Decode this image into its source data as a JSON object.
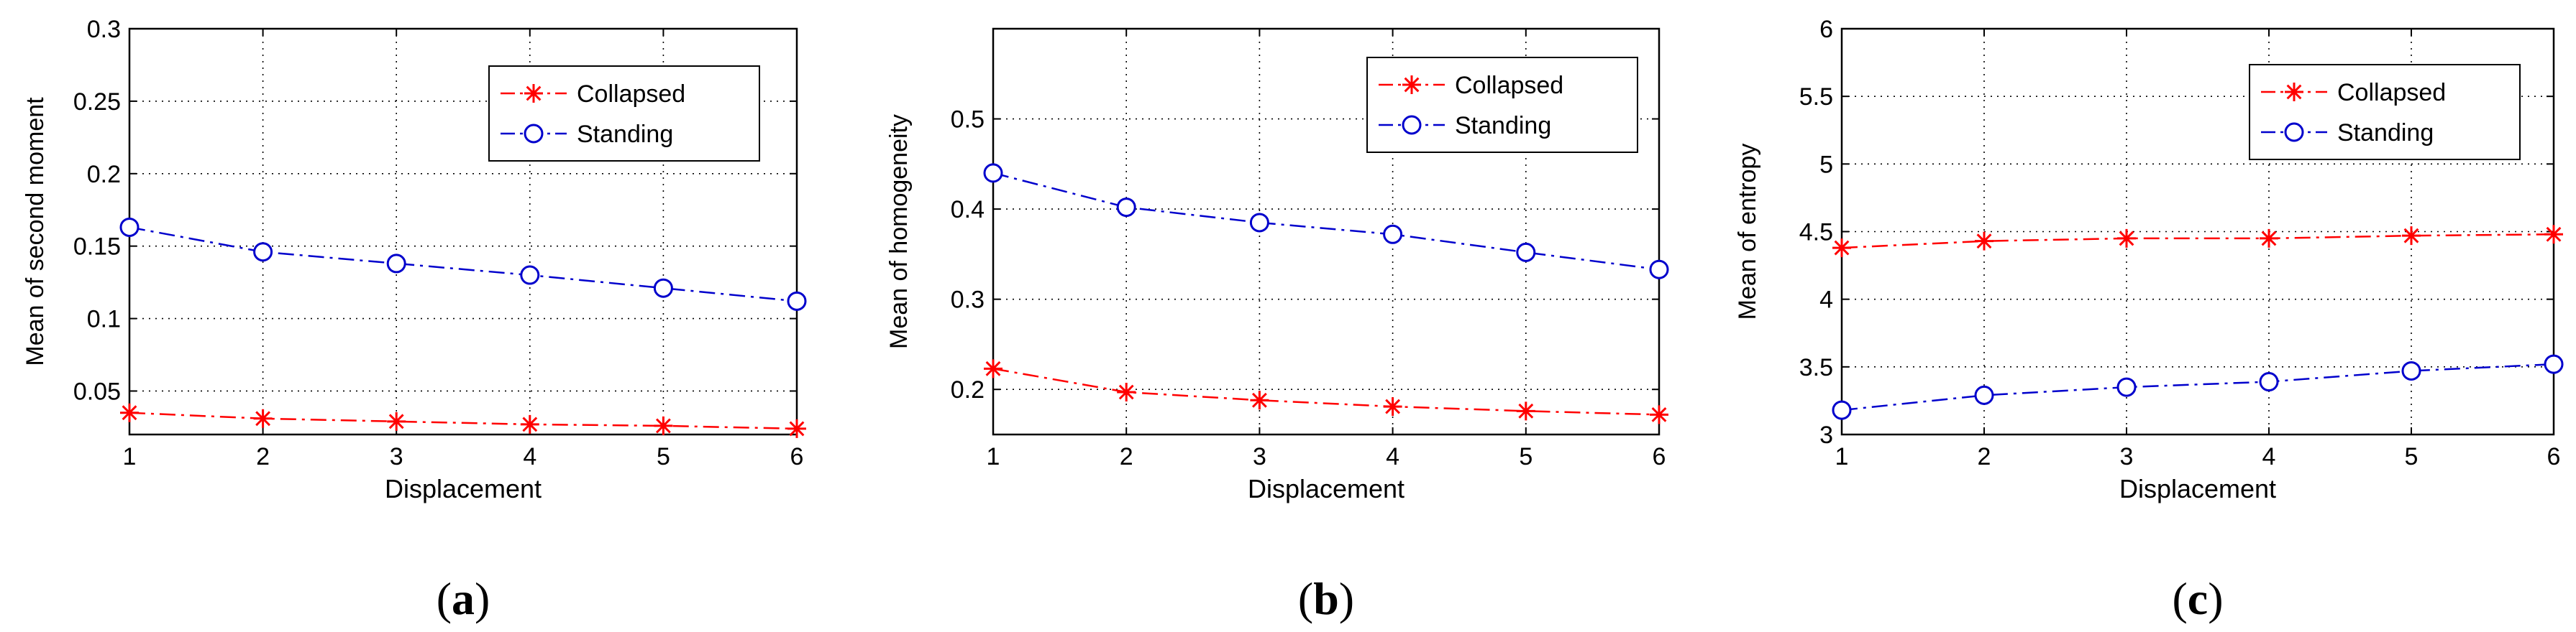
{
  "chart_data": [
    {
      "type": "line",
      "caption_letter": "a",
      "x": [
        1,
        2,
        3,
        4,
        5,
        6
      ],
      "xlim": [
        1,
        6
      ],
      "ylim": [
        0.02,
        0.3
      ],
      "xticks": [
        "1",
        "2",
        "3",
        "4",
        "5",
        "6"
      ],
      "yticks": [
        "0.05",
        "0.1",
        "0.15",
        "0.2",
        "0.25",
        "0.3"
      ],
      "ytick_values": [
        0.05,
        0.1,
        0.15,
        0.2,
        0.25,
        0.3
      ],
      "xlabel": "Displacement",
      "ylabel": "Mean of second moment",
      "grid": true,
      "legend_position": "top-right",
      "series": [
        {
          "name": "Collapsed",
          "marker": "star",
          "color": "#ff0000",
          "values": [
            0.035,
            0.031,
            0.029,
            0.027,
            0.026,
            0.024
          ]
        },
        {
          "name": "Standing",
          "marker": "circle",
          "color": "#0000cc",
          "values": [
            0.163,
            0.146,
            0.138,
            0.13,
            0.121,
            0.112
          ]
        }
      ]
    },
    {
      "type": "line",
      "caption_letter": "b",
      "x": [
        1,
        2,
        3,
        4,
        5,
        6
      ],
      "xlim": [
        1,
        6
      ],
      "ylim": [
        0.15,
        0.6
      ],
      "xticks": [
        "1",
        "2",
        "3",
        "4",
        "5",
        "6"
      ],
      "yticks": [
        "0.2",
        "0.3",
        "0.4",
        "0.5"
      ],
      "ytick_values": [
        0.2,
        0.3,
        0.4,
        0.5
      ],
      "xlabel": "Displacement",
      "ylabel": "Mean of homogeneity",
      "grid": true,
      "legend_position": "top-right",
      "series": [
        {
          "name": "Collapsed",
          "marker": "star",
          "color": "#ff0000",
          "values": [
            0.223,
            0.197,
            0.188,
            0.181,
            0.176,
            0.172
          ]
        },
        {
          "name": "Standing",
          "marker": "circle",
          "color": "#0000cc",
          "values": [
            0.44,
            0.402,
            0.385,
            0.372,
            0.352,
            0.333
          ]
        }
      ]
    },
    {
      "type": "line",
      "caption_letter": "c",
      "x": [
        1,
        2,
        3,
        4,
        5,
        6
      ],
      "xlim": [
        1,
        6
      ],
      "ylim": [
        3,
        6
      ],
      "xticks": [
        "1",
        "2",
        "3",
        "4",
        "5",
        "6"
      ],
      "yticks": [
        "3",
        "3.5",
        "4",
        "4.5",
        "5",
        "5.5",
        "6"
      ],
      "ytick_values": [
        3,
        3.5,
        4,
        4.5,
        5,
        5.5,
        6
      ],
      "xlabel": "Displacement",
      "ylabel": "Mean of entropy",
      "grid": true,
      "legend_position": "top-right",
      "series": [
        {
          "name": "Collapsed",
          "marker": "star",
          "color": "#ff0000",
          "values": [
            4.38,
            4.43,
            4.45,
            4.45,
            4.47,
            4.48
          ]
        },
        {
          "name": "Standing",
          "marker": "circle",
          "color": "#0000cc",
          "values": [
            3.18,
            3.29,
            3.35,
            3.39,
            3.47,
            3.52
          ]
        }
      ]
    }
  ]
}
